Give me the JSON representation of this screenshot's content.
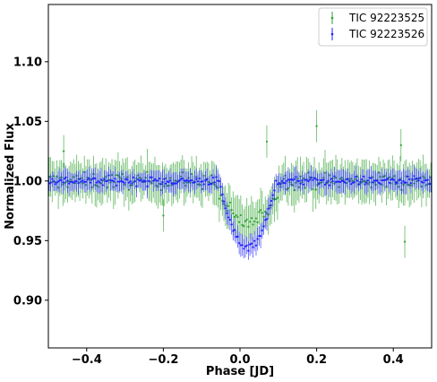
{
  "chart_data": {
    "type": "scatter",
    "xlabel": "Phase [JD]",
    "ylabel": "Normalized Flux",
    "xlim": [
      -0.5,
      0.5
    ],
    "ylim": [
      0.86,
      1.148
    ],
    "xticks": [
      {
        "value": -0.4,
        "label": "−0.4"
      },
      {
        "value": -0.2,
        "label": "−0.2"
      },
      {
        "value": 0.0,
        "label": "0.0"
      },
      {
        "value": 0.2,
        "label": "0.2"
      },
      {
        "value": 0.4,
        "label": "0.4"
      }
    ],
    "yticks": [
      {
        "value": 0.9,
        "label": "0.90"
      },
      {
        "value": 0.95,
        "label": "0.95"
      },
      {
        "value": 1.0,
        "label": "1.00"
      },
      {
        "value": 1.05,
        "label": "1.05"
      },
      {
        "value": 1.1,
        "label": "1.10"
      }
    ],
    "grid": false,
    "legend_position": "top-right",
    "series": [
      {
        "name": "TIC 92223525",
        "color": "#2ca02c",
        "marker": "point-with-errorbar",
        "point_count": 250,
        "baseline": 1.0,
        "typical_error": 0.015,
        "transit": {
          "center": 0.02,
          "depth": 0.035,
          "halfwidth": 0.09
        },
        "outliers": [
          {
            "x": -0.46,
            "y": 1.025
          },
          {
            "x": -0.2,
            "y": 0.971
          },
          {
            "x": 0.07,
            "y": 1.033
          },
          {
            "x": 0.2,
            "y": 1.046
          },
          {
            "x": 0.42,
            "y": 1.03
          },
          {
            "x": 0.43,
            "y": 0.949
          }
        ]
      },
      {
        "name": "TIC 92223526",
        "color": "#1f1fff",
        "marker": "point-with-errorbar",
        "point_count": 250,
        "baseline": 1.0,
        "typical_error": 0.008,
        "transit": {
          "center": 0.02,
          "depth": 0.055,
          "halfwidth": 0.075
        }
      }
    ]
  }
}
